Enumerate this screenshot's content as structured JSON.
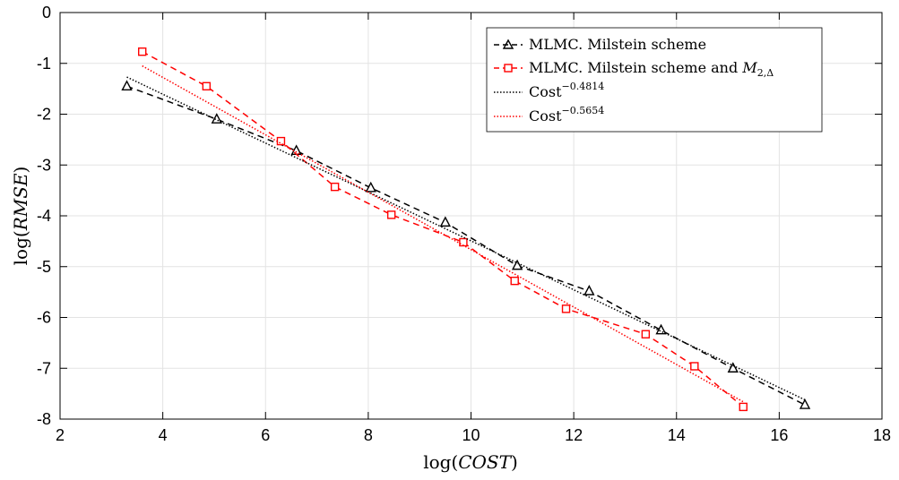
{
  "chart_data": {
    "type": "line",
    "xlabel": "log(COST)",
    "ylabel": "log(RMSE)",
    "xlim": [
      2,
      18
    ],
    "ylim": [
      -8,
      0
    ],
    "xticks": [
      2,
      4,
      6,
      8,
      10,
      12,
      14,
      16,
      18
    ],
    "yticks": [
      0,
      -1,
      -2,
      -3,
      -4,
      -5,
      -6,
      -7,
      -8
    ],
    "grid": true,
    "legend_position": "top-right",
    "series": [
      {
        "name": "MLMC. Milstein scheme",
        "color": "#000000",
        "line_style": "dashed",
        "marker": "triangle",
        "x": [
          3.3,
          5.05,
          6.6,
          8.05,
          9.5,
          10.9,
          12.3,
          13.7,
          15.1,
          16.5
        ],
        "y": [
          -1.45,
          -2.1,
          -2.72,
          -3.45,
          -4.13,
          -4.98,
          -5.48,
          -6.25,
          -7.0,
          -7.72
        ]
      },
      {
        "name": "MLMC. Milstein scheme and M2,Δ",
        "color": "#ff0000",
        "line_style": "dashed",
        "marker": "square",
        "x": [
          3.6,
          4.85,
          6.3,
          7.35,
          8.45,
          9.85,
          10.85,
          11.85,
          13.4,
          14.35,
          15.3
        ],
        "y": [
          -0.77,
          -1.45,
          -2.53,
          -3.43,
          -3.98,
          -4.52,
          -5.28,
          -5.83,
          -6.33,
          -6.96,
          -7.76
        ]
      },
      {
        "name": "Cost^-0.4814",
        "color": "#000000",
        "line_style": "dotted",
        "marker": "none",
        "x": [
          3.3,
          16.5
        ],
        "y": [
          -1.27,
          -7.62
        ]
      },
      {
        "name": "Cost^-0.5654",
        "color": "#ff0000",
        "line_style": "dotted",
        "marker": "none",
        "x": [
          3.6,
          15.3
        ],
        "y": [
          -1.05,
          -7.66
        ]
      }
    ]
  },
  "legend": {
    "items": [
      {
        "prefix": "MLMC. Milstein scheme",
        "math": ""
      },
      {
        "prefix": "MLMC. Milstein scheme and ",
        "math": "M",
        "sub": "2,Δ"
      },
      {
        "prefix": "Cost",
        "sup": "−0.4814"
      },
      {
        "prefix": "Cost",
        "sup": "−0.5654"
      }
    ]
  },
  "axes": {
    "xlabel_pre": "log(",
    "xlabel_var": "COST",
    "xlabel_post": ")",
    "ylabel_pre": "log(",
    "ylabel_var": "RMSE",
    "ylabel_post": ")"
  }
}
